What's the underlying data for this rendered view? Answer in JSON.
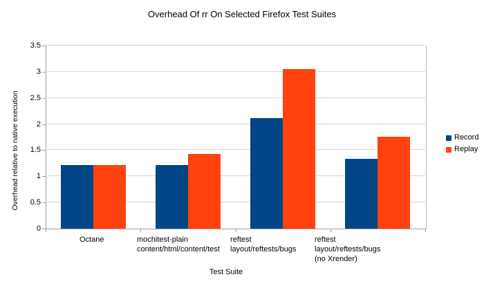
{
  "chart_data": {
    "type": "bar",
    "title": "Overhead Of rr On Selected Firefox Test Suites",
    "xlabel": "Test Suite",
    "ylabel": "Overhead relative to native execution",
    "ylim": [
      0,
      3.5
    ],
    "ytick_step": 0.5,
    "grid": true,
    "legend_position": "right",
    "background_color": "#ffffff",
    "categories": [
      [
        "Octane"
      ],
      [
        "mochitest-plain",
        "content/html/content/test"
      ],
      [
        "reftest",
        "layout/reftests/bugs"
      ],
      [
        "reftest",
        "layout/reftests/bugs",
        "(no Xrender)"
      ]
    ],
    "series": [
      {
        "name": "Record",
        "color": "#004586",
        "values": [
          1.21,
          1.21,
          2.11,
          1.34
        ]
      },
      {
        "name": "Replay",
        "color": "#ff420e",
        "values": [
          1.21,
          1.43,
          3.05,
          1.76
        ]
      }
    ]
  }
}
